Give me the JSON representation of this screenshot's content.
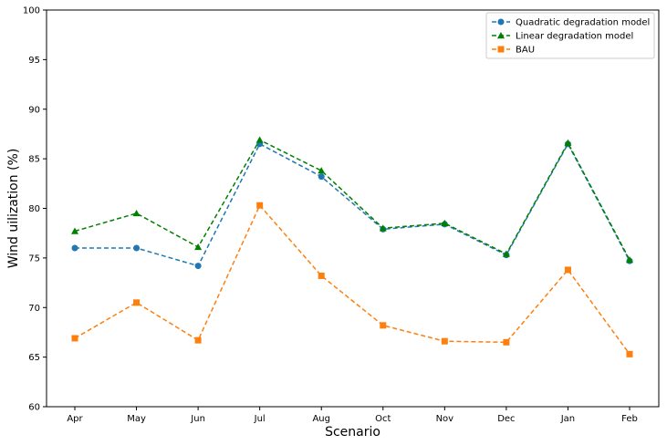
{
  "chart_data": {
    "type": "line",
    "title": "",
    "xlabel": "Scenario",
    "ylabel": "Wind uilization (%)",
    "categories": [
      "Apr",
      "May",
      "Jun",
      "Jul",
      "Aug",
      "Oct",
      "Nov",
      "Dec",
      "Jan",
      "Feb"
    ],
    "ylim": [
      60,
      100
    ],
    "yticks": [
      60,
      65,
      70,
      75,
      80,
      85,
      90,
      95,
      100
    ],
    "grid": false,
    "legend_position": "top-right",
    "series": [
      {
        "name": "Quadratic degradation model",
        "color": "#1f77b4",
        "marker": "circle",
        "linestyle": "dashed",
        "values": [
          76.0,
          76.0,
          74.2,
          86.5,
          83.2,
          77.9,
          78.4,
          75.3,
          86.5,
          74.7
        ]
      },
      {
        "name": "Linear degradation model",
        "color": "#008000",
        "marker": "triangle",
        "linestyle": "dashed",
        "values": [
          77.7,
          79.5,
          76.1,
          86.9,
          83.8,
          78.0,
          78.5,
          75.4,
          86.6,
          74.8
        ]
      },
      {
        "name": "BAU",
        "color": "#ff7f0e",
        "marker": "square",
        "linestyle": "dashed",
        "values": [
          66.9,
          70.5,
          66.7,
          80.3,
          73.2,
          68.2,
          66.6,
          66.5,
          73.8,
          65.3
        ]
      }
    ]
  }
}
